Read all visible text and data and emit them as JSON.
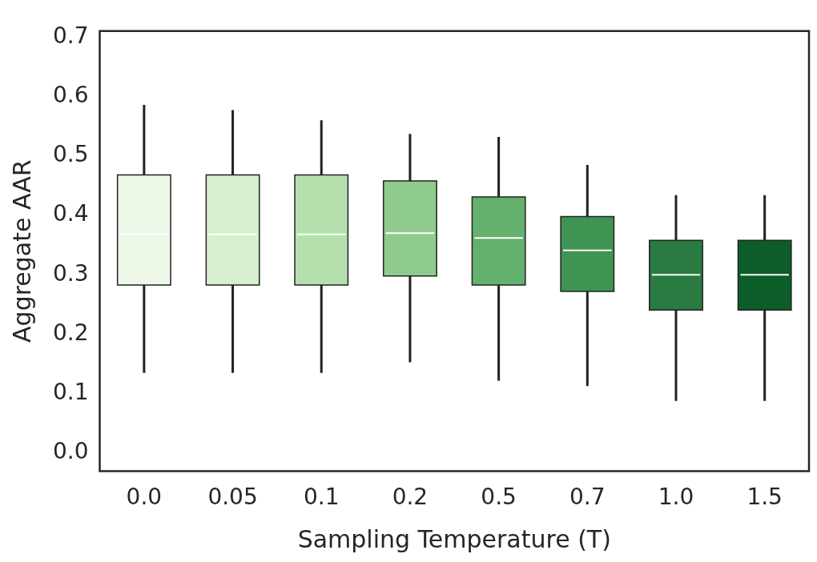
{
  "chart_data": {
    "type": "box",
    "xlabel": "Sampling Temperature (T)",
    "ylabel": "Aggregate AAR",
    "categories": [
      "0.0",
      "0.05",
      "0.1",
      "0.2",
      "0.5",
      "0.7",
      "1.0",
      "1.5"
    ],
    "colors": [
      "#edf8e9",
      "#d5efcf",
      "#b5e0ad",
      "#8fcb8a",
      "#64b06d",
      "#3f9453",
      "#2a7b41",
      "#0d5d2b"
    ],
    "boxes": [
      {
        "low": 0.135,
        "q1": 0.283,
        "median": 0.368,
        "q3": 0.468,
        "high": 0.586
      },
      {
        "low": 0.135,
        "q1": 0.283,
        "median": 0.368,
        "q3": 0.468,
        "high": 0.577
      },
      {
        "low": 0.135,
        "q1": 0.283,
        "median": 0.368,
        "q3": 0.468,
        "high": 0.56
      },
      {
        "low": 0.153,
        "q1": 0.298,
        "median": 0.37,
        "q3": 0.458,
        "high": 0.537
      },
      {
        "low": 0.122,
        "q1": 0.283,
        "median": 0.362,
        "q3": 0.431,
        "high": 0.532
      },
      {
        "low": 0.113,
        "q1": 0.272,
        "median": 0.341,
        "q3": 0.398,
        "high": 0.485
      },
      {
        "low": 0.088,
        "q1": 0.241,
        "median": 0.3,
        "q3": 0.358,
        "high": 0.434
      },
      {
        "low": 0.088,
        "q1": 0.241,
        "median": 0.3,
        "q3": 0.358,
        "high": 0.434
      }
    ],
    "ylim": [
      -0.03,
      0.71
    ],
    "yticks": [
      {
        "value": 0,
        "label": "0.0"
      },
      {
        "value": 0.1,
        "label": "0.1"
      },
      {
        "value": 0.2,
        "label": "0.2"
      },
      {
        "value": 0.3,
        "label": "0.3"
      },
      {
        "value": 0.4,
        "label": "0.4"
      },
      {
        "value": 0.5,
        "label": "0.5"
      },
      {
        "value": 0.6,
        "label": "0.6"
      },
      {
        "value": 0.7,
        "label": "0.7"
      }
    ],
    "grid": false,
    "legend": false
  }
}
